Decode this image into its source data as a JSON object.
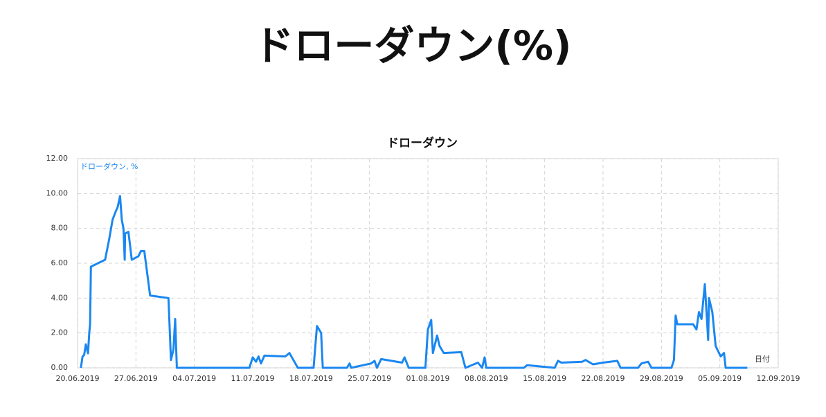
{
  "heading": "ドローダウン(%)",
  "chart_data": {
    "type": "line",
    "title": "ドローダウン",
    "y_label": "ドローダウン, %",
    "x_label": "日付",
    "x": [
      0.4,
      0.6,
      0.8,
      1.0,
      1.25,
      1.4,
      1.5,
      1.6,
      3.3,
      3.8,
      4.2,
      4.6,
      4.8,
      5.1,
      5.3,
      5.5,
      5.65,
      5.7,
      6.1,
      6.5,
      7.3,
      7.6,
      8.0,
      8.7,
      10.9,
      11.2,
      11.5,
      11.7,
      11.9,
      20.6,
      21.0,
      21.4,
      21.7,
      22.0,
      22.4,
      24.9,
      25.4,
      26.0,
      26.4,
      28.3,
      28.7,
      29.2,
      29.4,
      32.3,
      32.6,
      32.8,
      35.2,
      35.6,
      35.9,
      36.4,
      38.9,
      39.2,
      39.7,
      41.7,
      42.0,
      42.4,
      42.6,
      43.1,
      43.4,
      43.9,
      46.0,
      46.5,
      48.0,
      48.5,
      48.8,
      49.0,
      53.5,
      53.9,
      57.2,
      57.6,
      58.0,
      60.5,
      60.9,
      61.8,
      63.0,
      64.7,
      65.1,
      67.2,
      67.6,
      68.4,
      68.8,
      71.2,
      71.5,
      71.7,
      71.9,
      73.8,
      74.2,
      74.5,
      74.8,
      75.2,
      75.6,
      75.7,
      76.1,
      76.5,
      77.1,
      77.5,
      77.7,
      80.3
    ],
    "series": [
      {
        "name": "ドローダウン",
        "color": "#1a87f0",
        "values": [
          0,
          0.64,
          0.75,
          1.35,
          0.83,
          2.0,
          2.5,
          5.8,
          6.2,
          7.4,
          8.5,
          9.0,
          9.2,
          9.85,
          8.5,
          8.0,
          6.2,
          7.7,
          7.8,
          6.2,
          6.4,
          6.7,
          6.7,
          4.15,
          4.0,
          0.45,
          1.05,
          2.8,
          0,
          0,
          0.6,
          0.35,
          0.65,
          0.25,
          0.7,
          0.65,
          0.85,
          0.35,
          0,
          0,
          2.4,
          2.0,
          0,
          0,
          0.25,
          0,
          0.25,
          0.4,
          0,
          0.5,
          0.3,
          0.6,
          0,
          0,
          2.2,
          2.75,
          0.85,
          1.85,
          1.25,
          0.85,
          0.9,
          0,
          0.3,
          0,
          0.6,
          0,
          0,
          0.15,
          0,
          0.4,
          0.3,
          0.35,
          0.45,
          0.2,
          0.3,
          0.4,
          0,
          0,
          0.25,
          0.35,
          0,
          0,
          0.45,
          3.0,
          2.5,
          2.5,
          2.2,
          3.2,
          2.8,
          4.8,
          1.6,
          4.0,
          3.2,
          1.25,
          0.65,
          0.85,
          0,
          0
        ]
      }
    ],
    "xlim": [
      0,
      84
    ],
    "xticks": [
      {
        "value": 0,
        "label": "20.06.2019"
      },
      {
        "value": 7,
        "label": "27.06.2019"
      },
      {
        "value": 14,
        "label": "04.07.2019"
      },
      {
        "value": 21,
        "label": "11.07.2019"
      },
      {
        "value": 28,
        "label": "18.07.2019"
      },
      {
        "value": 35,
        "label": "25.07.2019"
      },
      {
        "value": 42,
        "label": "01.08.2019"
      },
      {
        "value": 49,
        "label": "08.08.2019"
      },
      {
        "value": 56,
        "label": "15.08.2019"
      },
      {
        "value": 63,
        "label": "22.08.2019"
      },
      {
        "value": 70,
        "label": "29.08.2019"
      },
      {
        "value": 77,
        "label": "05.09.2019"
      },
      {
        "value": 84,
        "label": "12.09.2019"
      }
    ],
    "ylim": [
      0,
      12
    ],
    "yticks": [
      {
        "value": 0,
        "label": "0.00"
      },
      {
        "value": 2,
        "label": "2.00"
      },
      {
        "value": 4,
        "label": "4.00"
      },
      {
        "value": 6,
        "label": "6.00"
      },
      {
        "value": 8,
        "label": "8.00"
      },
      {
        "value": 10,
        "label": "10.00"
      },
      {
        "value": 12,
        "label": "12.00"
      }
    ],
    "grid": true
  }
}
